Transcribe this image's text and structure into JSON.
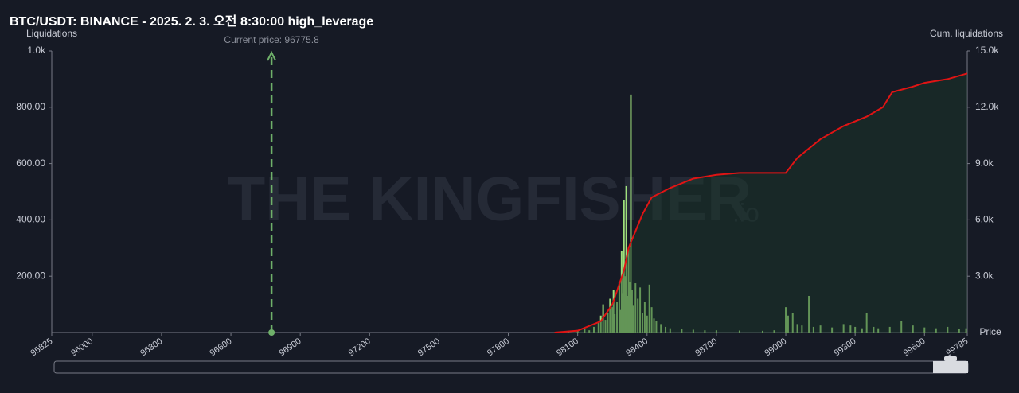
{
  "chart_data": {
    "type": "bar",
    "title": "BTC/USDT: BINANCE - 2025. 2. 3. 오전 8:30:00 high_leverage",
    "y_label": "Liquidations",
    "y2_label": "Cum. liquidations",
    "x_label": "Price",
    "watermark": "THE KINGFISHER",
    "watermark_suffix": ".io",
    "annotation": {
      "value": 96775.8,
      "label": "Current price: 96775.8"
    },
    "xlim": [
      95825,
      99785
    ],
    "xticks": [
      95825,
      96000,
      96300,
      96600,
      96900,
      97200,
      97500,
      97800,
      98100,
      98400,
      98700,
      99000,
      99300,
      99600,
      99785
    ],
    "ylim": [
      0,
      1000
    ],
    "yticks": [
      {
        "value": 200,
        "label": "200.00"
      },
      {
        "value": 400,
        "label": "400.00"
      },
      {
        "value": 600,
        "label": "600.00"
      },
      {
        "value": 800,
        "label": "800.00"
      },
      {
        "value": 1000,
        "label": "1.0k"
      }
    ],
    "y2lim": [
      0,
      15000
    ],
    "y2ticks": [
      {
        "value": 3000,
        "label": "3.0k"
      },
      {
        "value": 6000,
        "label": "6.0k"
      },
      {
        "value": 9000,
        "label": "9.0k"
      },
      {
        "value": 12000,
        "label": "12.0k"
      },
      {
        "value": 15000,
        "label": "15.0k"
      }
    ],
    "series": [
      {
        "type": "bar",
        "color": "#9fe07c",
        "x": [
          98020,
          98060,
          98100,
          98130,
          98150,
          98170,
          98190,
          98200,
          98210,
          98220,
          98230,
          98240,
          98250,
          98255,
          98260,
          98270,
          98280,
          98285,
          98290,
          98295,
          98300,
          98305,
          98310,
          98315,
          98320,
          98325,
          98330,
          98335,
          98340,
          98350,
          98360,
          98370,
          98380,
          98390,
          98400,
          98410,
          98420,
          98430,
          98440,
          98460,
          98480,
          98500,
          98550,
          98600,
          98650,
          98700,
          98800,
          98900,
          98950,
          99000,
          99010,
          99030,
          99050,
          99070,
          99100,
          99120,
          99150,
          99200,
          99250,
          99280,
          99300,
          99330,
          99350,
          99380,
          99400,
          99450,
          99500,
          99550,
          99600,
          99650,
          99700,
          99750,
          99780
        ],
        "values": [
          3,
          4,
          6,
          12,
          8,
          20,
          35,
          60,
          100,
          45,
          70,
          120,
          90,
          150,
          65,
          110,
          180,
          80,
          290,
          140,
          470,
          200,
          520,
          130,
          300,
          180,
          845,
          150,
          95,
          175,
          120,
          160,
          70,
          110,
          60,
          170,
          90,
          50,
          40,
          30,
          20,
          15,
          12,
          10,
          8,
          8,
          7,
          6,
          8,
          90,
          60,
          70,
          30,
          25,
          130,
          20,
          25,
          18,
          30,
          25,
          20,
          15,
          70,
          20,
          15,
          20,
          40,
          25,
          18,
          15,
          20,
          12,
          15
        ]
      },
      {
        "type": "line",
        "axis": "y2",
        "color": "#e01414",
        "x": [
          98000,
          98100,
          98200,
          98250,
          98300,
          98320,
          98350,
          98380,
          98420,
          98500,
          98600,
          98700,
          98800,
          99000,
          99050,
          99150,
          99250,
          99350,
          99420,
          99460,
          99550,
          99600,
          99700,
          99785
        ],
        "values": [
          0,
          100,
          600,
          1500,
          3300,
          4500,
          5400,
          6300,
          7200,
          7700,
          8200,
          8400,
          8500,
          8500,
          9300,
          10300,
          11000,
          11500,
          12000,
          12800,
          13100,
          13300,
          13500,
          13800
        ]
      }
    ]
  }
}
